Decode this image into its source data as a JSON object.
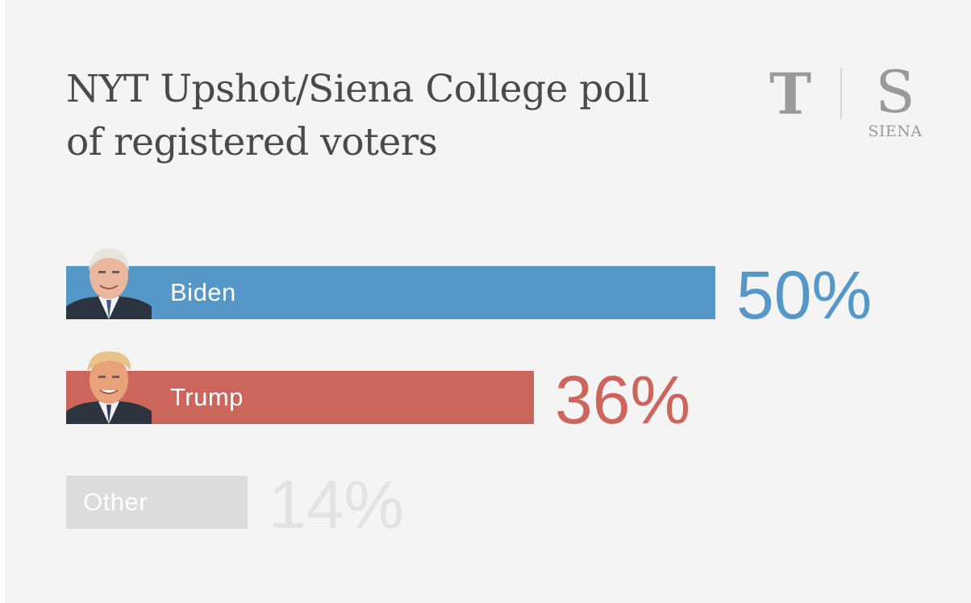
{
  "title_lines": [
    "NYT Upshot/Siena College poll",
    "of registered voters"
  ],
  "logos": {
    "nyt_mark": "T",
    "siena_mark": "S",
    "siena_word": "SIENA"
  },
  "colors": {
    "biden": "#5598c8",
    "trump": "#cc665d",
    "other_bar": "#dcdcdc",
    "other_text": "#e3e3e3",
    "background": "#f4f4f4"
  },
  "chart_data": {
    "type": "bar",
    "orientation": "horizontal",
    "title": "NYT Upshot/Siena College poll of registered voters",
    "categories": [
      "Biden",
      "Trump",
      "Other"
    ],
    "values": [
      50,
      36,
      14
    ],
    "value_labels": [
      "50%",
      "36%",
      "14%"
    ],
    "unit": "%",
    "grid": false,
    "legend": "none",
    "photos": [
      "candidate-photo-biden",
      "candidate-photo-trump",
      null
    ]
  }
}
